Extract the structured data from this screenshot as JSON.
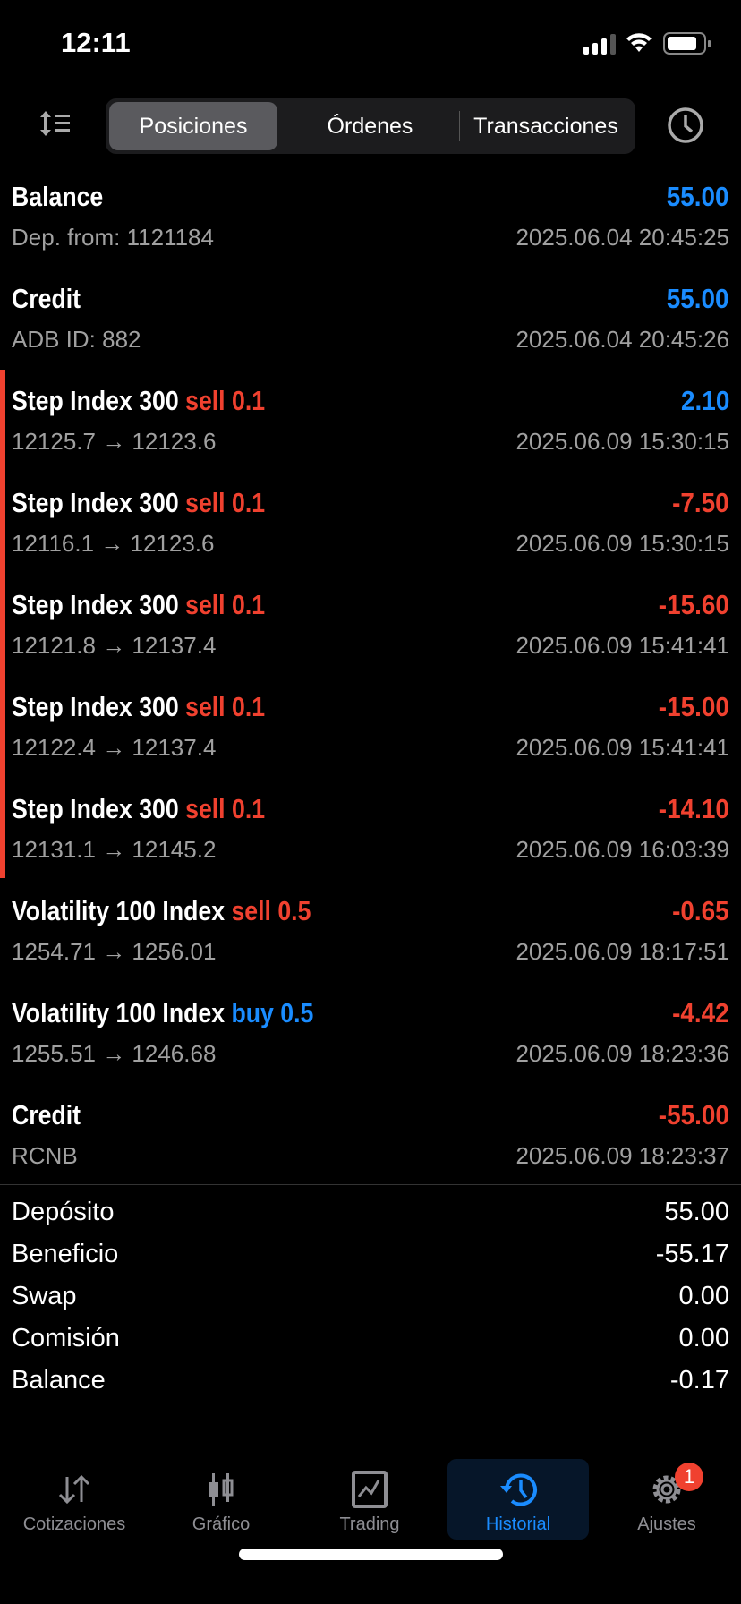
{
  "status": {
    "time": "12:11"
  },
  "segments": {
    "positions": "Posiciones",
    "orders": "Órdenes",
    "transactions": "Transacciones",
    "active": "Posiciones"
  },
  "rows": [
    {
      "title": "Balance",
      "side": "",
      "side_color": "",
      "value": "55.00",
      "value_color": "blue",
      "sub": "Dep. from: 1121184",
      "date": "2025.06.04 20:45:25"
    },
    {
      "title": "Credit",
      "side": "",
      "side_color": "",
      "value": "55.00",
      "value_color": "blue",
      "sub": "ADB ID: 882",
      "date": "2025.06.04 20:45:26"
    },
    {
      "title": "Step Index 300",
      "side": "sell 0.1",
      "side_color": "red",
      "value": "2.10",
      "value_color": "blue",
      "sub": "12125.7 → 12123.6",
      "date": "2025.06.09 15:30:15"
    },
    {
      "title": "Step Index 300",
      "side": "sell 0.1",
      "side_color": "red",
      "value": "-7.50",
      "value_color": "red",
      "sub": "12116.1 → 12123.6",
      "date": "2025.06.09 15:30:15"
    },
    {
      "title": "Step Index 300",
      "side": "sell 0.1",
      "side_color": "red",
      "value": "-15.60",
      "value_color": "red",
      "sub": "12121.8 → 12137.4",
      "date": "2025.06.09 15:41:41"
    },
    {
      "title": "Step Index 300",
      "side": "sell 0.1",
      "side_color": "red",
      "value": "-15.00",
      "value_color": "red",
      "sub": "12122.4 → 12137.4",
      "date": "2025.06.09 15:41:41"
    },
    {
      "title": "Step Index 300",
      "side": "sell 0.1",
      "side_color": "red",
      "value": "-14.10",
      "value_color": "red",
      "sub": "12131.1 → 12145.2",
      "date": "2025.06.09 16:03:39"
    },
    {
      "title": "Volatility 100 Index",
      "side": "sell 0.5",
      "side_color": "red",
      "value": "-0.65",
      "value_color": "red",
      "sub": "1254.71 → 1256.01",
      "date": "2025.06.09 18:17:51"
    },
    {
      "title": "Volatility 100 Index",
      "side": "buy 0.5",
      "side_color": "blue",
      "value": "-4.42",
      "value_color": "red",
      "sub": "1255.51 → 1246.68",
      "date": "2025.06.09 18:23:36"
    },
    {
      "title": "Credit",
      "side": "",
      "side_color": "",
      "value": "-55.00",
      "value_color": "red",
      "sub": "RCNB",
      "date": "2025.06.09 18:23:37"
    }
  ],
  "summary": [
    {
      "label": "Depósito",
      "value": "55.00"
    },
    {
      "label": "Beneficio",
      "value": "-55.17"
    },
    {
      "label": "Swap",
      "value": "0.00"
    },
    {
      "label": "Comisión",
      "value": "0.00"
    },
    {
      "label": "Balance",
      "value": "-0.17"
    }
  ],
  "tabbar": {
    "quotes": "Cotizaciones",
    "chart": "Gráfico",
    "trading": "Trading",
    "history": "Historial",
    "settings": "Ajustes",
    "settings_badge": "1",
    "active": "Historial"
  },
  "colors": {
    "red": "#f0412f",
    "blue": "#1a8cff"
  }
}
